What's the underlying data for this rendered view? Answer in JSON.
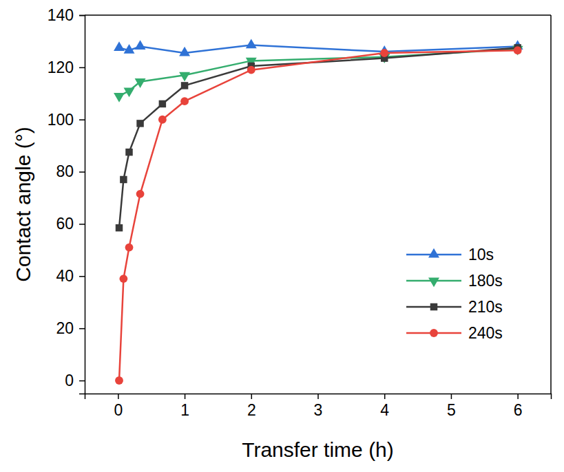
{
  "chart_data": {
    "type": "line",
    "x_label": "Transfer time (h)",
    "y_label": "Contact angle (°)",
    "xlim": [
      -0.5,
      6.5
    ],
    "xticks": [
      0,
      1,
      2,
      3,
      4,
      5,
      6
    ],
    "ylim": [
      -5,
      140
    ],
    "yticks": [
      0,
      20,
      40,
      60,
      80,
      100,
      120,
      140
    ],
    "legend": "lower right",
    "grid": false,
    "series": [
      {
        "name": "10s",
        "color": "#2f72d6",
        "marker": "triangle-up",
        "x": [
          0.017,
          0.167,
          0.333,
          1,
          2,
          4,
          6
        ],
        "values": [
          127.5,
          126.5,
          128,
          125.5,
          128.5,
          126,
          128
        ]
      },
      {
        "name": "180s",
        "color": "#34ad6e",
        "marker": "triangle-down",
        "x": [
          0.017,
          0.167,
          0.333,
          1,
          2,
          4,
          6
        ],
        "values": [
          109,
          111,
          114.5,
          117,
          122.5,
          124,
          127
        ]
      },
      {
        "name": "210s",
        "color": "#3a3a3a",
        "marker": "square",
        "x": [
          0.017,
          0.083,
          0.167,
          0.333,
          0.667,
          1,
          2,
          4,
          6
        ],
        "values": [
          58.5,
          77,
          87.5,
          98.5,
          106,
          113,
          120.5,
          123.5,
          127.5
        ]
      },
      {
        "name": "240s",
        "color": "#e8433b",
        "marker": "circle",
        "x": [
          0.017,
          0.083,
          0.167,
          0.333,
          0.667,
          1,
          2,
          4,
          6
        ],
        "values": [
          0,
          39,
          51,
          71.5,
          100,
          107,
          119,
          125.5,
          126.5
        ]
      }
    ]
  }
}
